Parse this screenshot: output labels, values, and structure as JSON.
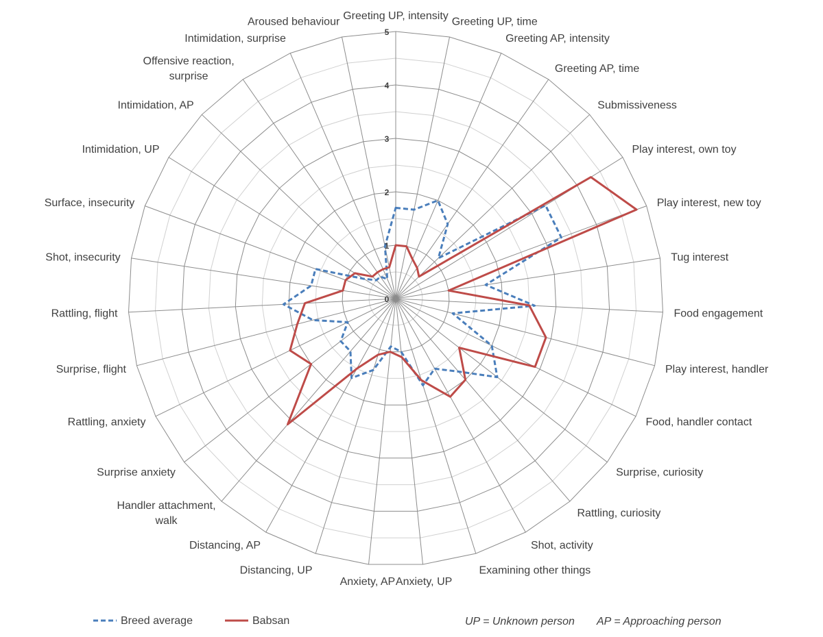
{
  "chart_data": {
    "type": "radar",
    "rlim": [
      0,
      5
    ],
    "ticks": [
      "0",
      "1",
      "2",
      "3",
      "4",
      "5"
    ],
    "grid": true,
    "legend_position": "bottom-left",
    "categories": [
      "Greeting UP, intensity",
      "Greeting UP, time",
      "Greeting AP, intensity",
      "Greeting AP, time",
      "Submissiveness",
      "Play interest, own toy",
      "Play interest, new toy",
      "Tug interest",
      "Food engagement",
      "Play interest, handler",
      "Food, handler contact",
      "Surprise, curiosity",
      "Rattling, curiosity",
      "Shot, activity",
      "Examining other things",
      "Anxiety, UP",
      "Anxiety, AP",
      "Distancing, UP",
      "Distancing, AP",
      "Handler attachment, walk",
      "Surprise anxiety",
      "Rattling, anxiety",
      "Surprise, flight",
      "Rattling, flight",
      "Shot, insecurity",
      "Surface, insecurity",
      "Intimidation, UP",
      "Intimidation, AP",
      "Offensive reaction, surprise",
      "Intimidation, surprise",
      "Aroused behaviour"
    ],
    "series": [
      {
        "name": "Breed average",
        "color": "#4a7ebb",
        "dash": true,
        "values": [
          1.7,
          1.7,
          2.0,
          1.7,
          1.1,
          3.3,
          3.3,
          1.7,
          2.6,
          1.1,
          2.0,
          2.4,
          1.8,
          1.5,
          1.7,
          1.0,
          0.9,
          1.4,
          1.7,
          1.3,
          1.3,
          1.0,
          1.6,
          2.1,
          1.6,
          1.6,
          0.7,
          0.5,
          0.5,
          0.4,
          1.0
        ]
      },
      {
        "name": "Babsan",
        "color": "#be4b48",
        "dash": false,
        "values": [
          1.0,
          1.0,
          0.8,
          0.7,
          0.6,
          4.3,
          4.8,
          1.0,
          2.5,
          2.9,
          2.9,
          1.5,
          2.0,
          2.1,
          1.6,
          1.1,
          1.0,
          1.1,
          1.5,
          3.1,
          2.0,
          2.2,
          1.9,
          1.7,
          1.0,
          1.0,
          0.9,
          0.6,
          0.6,
          0.6,
          0.6
        ]
      }
    ]
  },
  "notes": {
    "up": "UP = Unknown person",
    "ap": "AP = Approaching person"
  }
}
